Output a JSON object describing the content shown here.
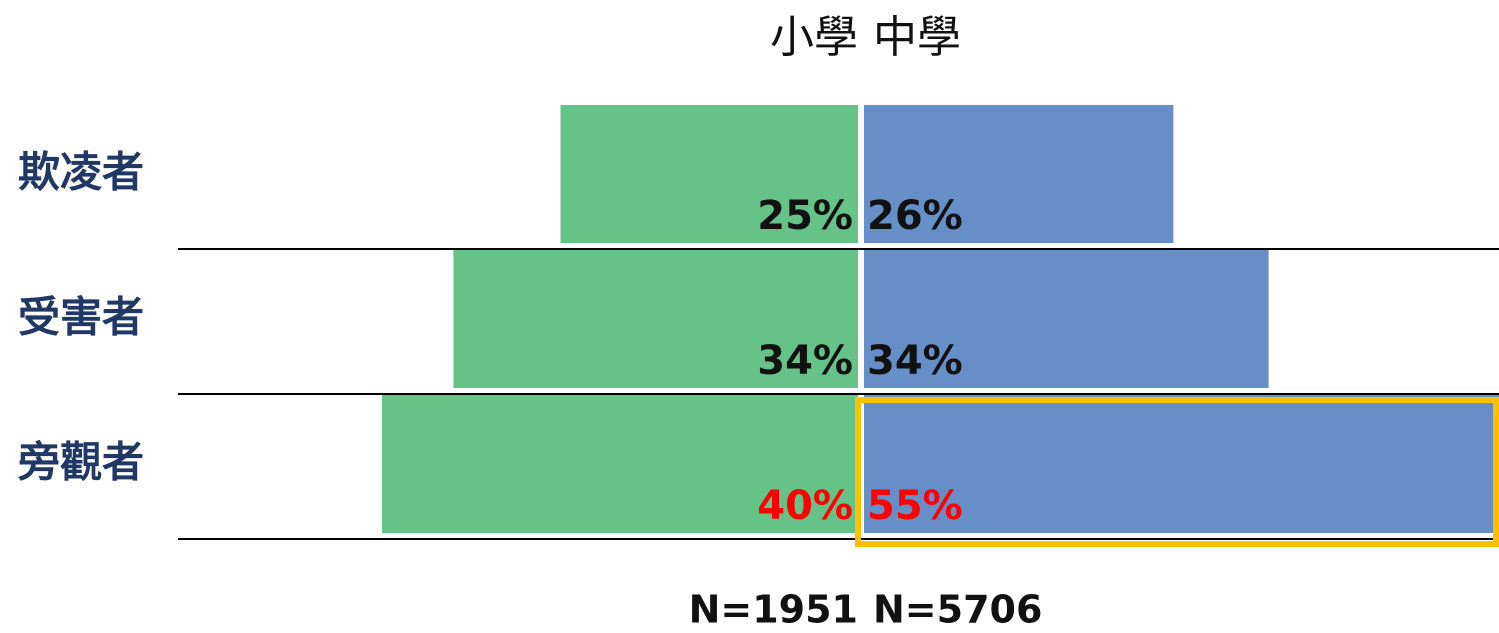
{
  "chart_data": {
    "type": "butterfly",
    "categories": [
      "欺凌者",
      "受害者",
      "旁觀者"
    ],
    "series": [
      {
        "name": "小學",
        "color": "#66c387",
        "values": [
          25,
          34,
          40
        ],
        "value_labels": [
          "25%",
          "34%",
          "40%"
        ],
        "n_label": "N=1951"
      },
      {
        "name": "中學",
        "color": "#658fc6",
        "values": [
          26,
          34,
          55
        ],
        "value_labels": [
          "26%",
          "34%",
          "55%"
        ],
        "n_label": "N=5706"
      }
    ],
    "category_color": "#1f3864",
    "label_color": "#111111",
    "highlight": {
      "category": 2,
      "series": 1,
      "color": "#ffc000",
      "label_color": "#ff0000"
    }
  }
}
